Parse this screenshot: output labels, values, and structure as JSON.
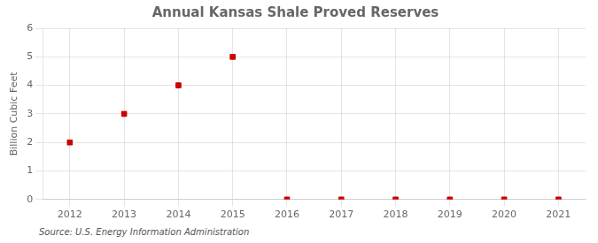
{
  "chart_data": {
    "type": "scatter",
    "title": "Annual Kansas Shale Proved Reserves",
    "ylabel": "Billion Cubic Feet",
    "annotations": [
      "Source: U.S. Energy Information Administration"
    ],
    "x": [
      2012,
      2013,
      2014,
      2015,
      2016,
      2017,
      2018,
      2019,
      2020,
      2021
    ],
    "values": [
      2.0,
      3.0,
      4.0,
      5.0,
      0.0,
      0.0,
      0.0,
      0.0,
      0.0,
      0.0
    ],
    "xlim": [
      2011.5,
      2021.5
    ],
    "ylim": [
      0,
      6
    ],
    "xticks": [
      2012,
      2013,
      2014,
      2015,
      2016,
      2017,
      2018,
      2019,
      2020,
      2021
    ],
    "yticks": [
      0,
      1,
      2,
      3,
      4,
      5,
      6
    ],
    "color": "#cc0000",
    "marker": "square",
    "grid": true
  }
}
